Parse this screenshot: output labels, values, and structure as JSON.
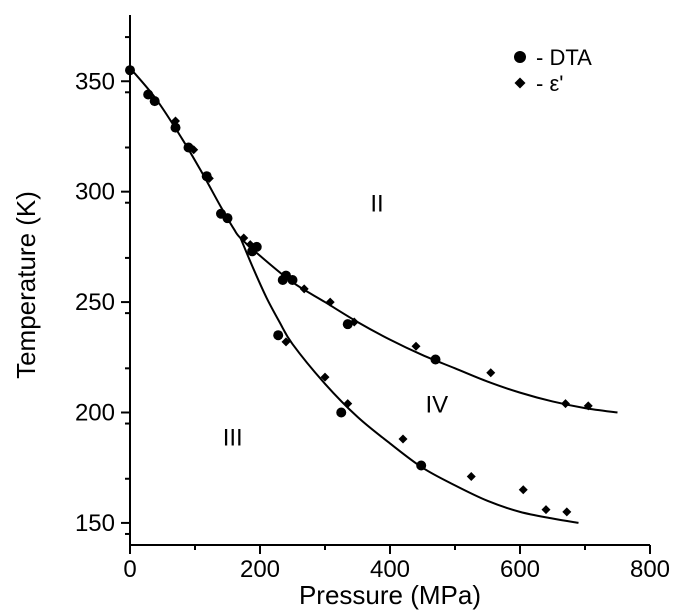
{
  "chart_data": {
    "type": "scatter",
    "title": "",
    "xlabel": "Pressure  (MPa)",
    "ylabel": "Temperature  (K)",
    "xlim": [
      0,
      800
    ],
    "ylim": [
      140,
      380
    ],
    "xticks": [
      0,
      200,
      400,
      600,
      800
    ],
    "yticks": [
      150,
      200,
      250,
      300,
      350
    ],
    "grid": false,
    "legend_position": "top-right",
    "region_labels": [
      {
        "text": "II",
        "x": 380,
        "y": 291
      },
      {
        "text": "III",
        "x": 158,
        "y": 185
      },
      {
        "text": "IV",
        "x": 472,
        "y": 200
      }
    ],
    "series": [
      {
        "name": "- DTA",
        "marker": "circle",
        "points": [
          [
            0,
            355
          ],
          [
            28,
            344
          ],
          [
            38,
            341
          ],
          [
            70,
            329
          ],
          [
            90,
            320
          ],
          [
            118,
            307
          ],
          [
            140,
            290
          ],
          [
            150,
            288
          ],
          [
            188,
            273
          ],
          [
            195,
            275
          ],
          [
            228,
            235
          ],
          [
            235,
            260
          ],
          [
            240,
            262
          ],
          [
            250,
            260
          ],
          [
            325,
            200
          ],
          [
            335,
            240
          ],
          [
            448,
            176
          ],
          [
            470,
            224
          ]
        ]
      },
      {
        "name": "- ε'",
        "marker": "diamond",
        "points": [
          [
            70,
            332
          ],
          [
            98,
            319
          ],
          [
            122,
            306
          ],
          [
            175,
            279
          ],
          [
            185,
            276
          ],
          [
            240,
            232
          ],
          [
            268,
            256
          ],
          [
            300,
            216
          ],
          [
            308,
            250
          ],
          [
            335,
            204
          ],
          [
            345,
            241
          ],
          [
            420,
            188
          ],
          [
            440,
            230
          ],
          [
            525,
            171
          ],
          [
            555,
            218
          ],
          [
            605,
            165
          ],
          [
            640,
            156
          ],
          [
            670,
            204
          ],
          [
            672,
            155
          ],
          [
            705,
            203
          ]
        ]
      },
      {
        "name": "",
        "type": "line",
        "points": [
          [
            0,
            356
          ],
          [
            40,
            342
          ],
          [
            80,
            324
          ],
          [
            110,
            309
          ],
          [
            140,
            293
          ],
          [
            160,
            283
          ],
          [
            170,
            279
          ],
          [
            200,
            271
          ],
          [
            250,
            259
          ],
          [
            300,
            250
          ],
          [
            350,
            241
          ],
          [
            400,
            233
          ],
          [
            450,
            226
          ],
          [
            500,
            220
          ],
          [
            550,
            214
          ],
          [
            600,
            209
          ],
          [
            650,
            205
          ],
          [
            700,
            202
          ],
          [
            750,
            200
          ]
        ]
      },
      {
        "name": "",
        "type": "line",
        "points": [
          [
            170,
            279
          ],
          [
            190,
            265
          ],
          [
            210,
            252
          ],
          [
            230,
            241
          ],
          [
            250,
            231
          ],
          [
            300,
            213
          ],
          [
            350,
            198
          ],
          [
            400,
            186
          ],
          [
            450,
            175
          ],
          [
            500,
            167
          ],
          [
            550,
            160
          ],
          [
            600,
            155
          ],
          [
            650,
            152
          ],
          [
            690,
            150
          ]
        ]
      }
    ]
  }
}
